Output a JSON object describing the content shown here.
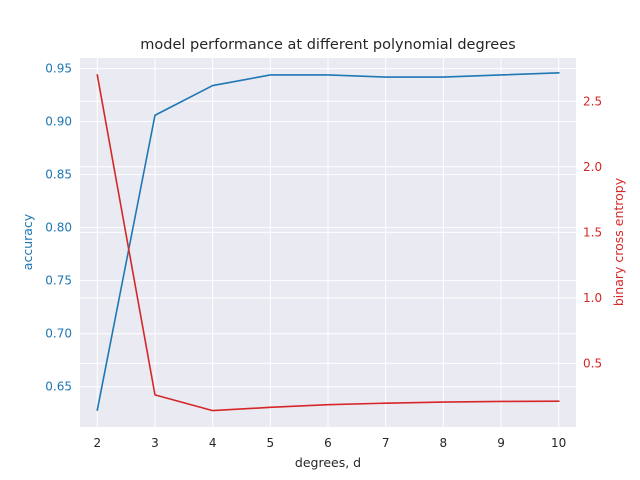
{
  "chart_data": {
    "type": "line",
    "title": "model performance at different polynomial degrees",
    "xlabel": "degrees, d",
    "x": [
      2,
      3,
      4,
      5,
      6,
      7,
      8,
      9,
      10
    ],
    "xlim": [
      1.7,
      10.3
    ],
    "xticks": [
      "2",
      "3",
      "4",
      "5",
      "6",
      "7",
      "8",
      "9",
      "10"
    ],
    "grid": true,
    "left_axis": {
      "label": "accuracy",
      "color": "#1f77b4",
      "ylim": [
        0.612,
        0.96
      ],
      "ticks": [
        0.65,
        0.7,
        0.75,
        0.8,
        0.85,
        0.9,
        0.95
      ],
      "tick_labels": [
        "0.65",
        "0.70",
        "0.75",
        "0.80",
        "0.85",
        "0.90",
        "0.95"
      ]
    },
    "right_axis": {
      "label": "binary cross entropy",
      "color": "#d62728",
      "ylim": [
        0.015,
        2.83
      ],
      "ticks": [
        0.5,
        1.0,
        1.5,
        2.0,
        2.5
      ],
      "tick_labels": [
        "0.5",
        "1.0",
        "1.5",
        "2.0",
        "2.5"
      ]
    },
    "series": [
      {
        "axis": "left",
        "color": "#1f77b4",
        "values": [
          0.628,
          0.906,
          0.934,
          0.944,
          0.944,
          0.942,
          0.942,
          0.944,
          0.946
        ]
      },
      {
        "axis": "right",
        "color": "#d62728",
        "values": [
          2.7,
          0.26,
          0.14,
          0.165,
          0.185,
          0.197,
          0.205,
          0.21,
          0.212
        ]
      }
    ]
  }
}
